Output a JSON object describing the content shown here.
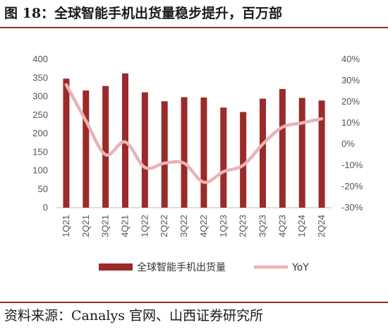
{
  "header": {
    "title": "图 18：全球智能手机出货量稳步提升，百万部"
  },
  "footer": {
    "source": "资料来源：Canalys 官网、山西证券研究所"
  },
  "colors": {
    "bar": "#9b2a2a",
    "line": "#e9b3b3",
    "rule": "#9a2a2a"
  },
  "chart_data": {
    "type": "bar",
    "categories": [
      "1Q21",
      "2Q21",
      "3Q21",
      "4Q21",
      "1Q22",
      "2Q22",
      "3Q22",
      "4Q22",
      "1Q23",
      "2Q23",
      "3Q23",
      "4Q23",
      "1Q24",
      "2Q24"
    ],
    "series": [
      {
        "name": "全球智能手机出货量",
        "type": "bar",
        "axis": "left",
        "values": [
          348,
          316,
          328,
          362,
          311,
          287,
          298,
          297,
          270,
          258,
          294,
          320,
          296,
          289
        ]
      },
      {
        "name": "YoY",
        "type": "line",
        "axis": "right",
        "unit": "%",
        "values": [
          28,
          11,
          -5,
          1,
          -11,
          -9,
          -9,
          -18,
          -13,
          -10,
          0,
          8,
          10,
          12
        ]
      }
    ],
    "left_axis": {
      "ylim": [
        0,
        400
      ],
      "ticks": [
        "0",
        "50",
        "100",
        "150",
        "200",
        "250",
        "300",
        "350",
        "400"
      ]
    },
    "right_axis": {
      "ylim": [
        -30,
        40
      ],
      "ticks": [
        "-30%",
        "-20%",
        "-10%",
        "0%",
        "10%",
        "20%",
        "30%",
        "40%"
      ]
    },
    "legend": {
      "position": "bottom",
      "items": [
        "全球智能手机出货量",
        "YoY"
      ]
    },
    "grid": false
  }
}
